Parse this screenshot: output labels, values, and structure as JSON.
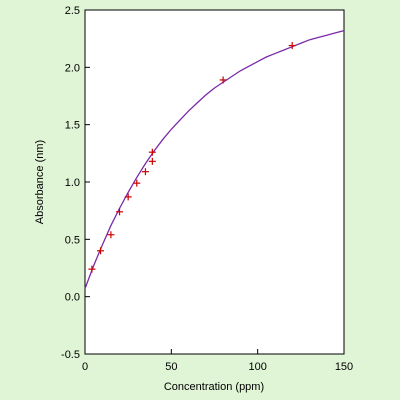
{
  "chart_data": {
    "type": "scatter",
    "title": "",
    "xlabel": "Concentration (ppm)",
    "ylabel": "Absorbance (nm)",
    "xlim": [
      0,
      150
    ],
    "ylim": [
      -0.5,
      2.5
    ],
    "x_ticks": [
      0,
      50,
      100,
      150
    ],
    "x_tick_labels": [
      "0",
      "50",
      "100",
      "150"
    ],
    "y_ticks": [
      -0.5,
      0.0,
      0.5,
      1.0,
      1.5,
      2.0,
      2.5
    ],
    "y_tick_labels": [
      "-0.5",
      "0.0",
      "0.5",
      "1.0",
      "1.5",
      "2.0",
      "2.5"
    ],
    "grid": false,
    "series": [
      {
        "kind": "points",
        "marker": "plus",
        "color": "#cc0000",
        "points": [
          {
            "x": 4,
            "y": 0.24
          },
          {
            "x": 9,
            "y": 0.4
          },
          {
            "x": 15,
            "y": 0.54
          },
          {
            "x": 20,
            "y": 0.74
          },
          {
            "x": 25,
            "y": 0.87
          },
          {
            "x": 30,
            "y": 0.99
          },
          {
            "x": 35,
            "y": 1.09
          },
          {
            "x": 39,
            "y": 1.18
          },
          {
            "x": 39,
            "y": 1.26
          },
          {
            "x": 80,
            "y": 1.89
          },
          {
            "x": 120,
            "y": 2.19
          }
        ]
      },
      {
        "kind": "fit-curve",
        "color": "#7a2aa8",
        "points": [
          {
            "x": 0,
            "y": 0.07
          },
          {
            "x": 5,
            "y": 0.27
          },
          {
            "x": 10,
            "y": 0.45
          },
          {
            "x": 15,
            "y": 0.62
          },
          {
            "x": 20,
            "y": 0.77
          },
          {
            "x": 25,
            "y": 0.91
          },
          {
            "x": 30,
            "y": 1.04
          },
          {
            "x": 35,
            "y": 1.16
          },
          {
            "x": 40,
            "y": 1.27
          },
          {
            "x": 45,
            "y": 1.37
          },
          {
            "x": 50,
            "y": 1.46
          },
          {
            "x": 55,
            "y": 1.54
          },
          {
            "x": 60,
            "y": 1.62
          },
          {
            "x": 65,
            "y": 1.69
          },
          {
            "x": 70,
            "y": 1.76
          },
          {
            "x": 75,
            "y": 1.82
          },
          {
            "x": 80,
            "y": 1.87
          },
          {
            "x": 85,
            "y": 1.92
          },
          {
            "x": 90,
            "y": 1.97
          },
          {
            "x": 95,
            "y": 2.01
          },
          {
            "x": 100,
            "y": 2.05
          },
          {
            "x": 105,
            "y": 2.09
          },
          {
            "x": 110,
            "y": 2.12
          },
          {
            "x": 115,
            "y": 2.15
          },
          {
            "x": 120,
            "y": 2.18
          },
          {
            "x": 125,
            "y": 2.21
          },
          {
            "x": 130,
            "y": 2.24
          },
          {
            "x": 135,
            "y": 2.26
          },
          {
            "x": 140,
            "y": 2.28
          },
          {
            "x": 145,
            "y": 2.3
          },
          {
            "x": 150,
            "y": 2.32
          }
        ]
      }
    ]
  }
}
